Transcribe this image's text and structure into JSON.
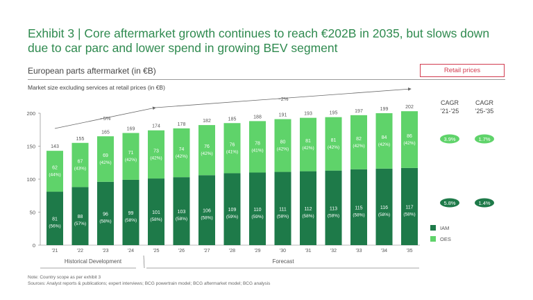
{
  "header": {
    "title": "Exhibit 3 | Core aftermarket growth continues to reach €202B in 2035, but slows down due to car parc and lower spend in growing BEV segment",
    "subtitle": "European parts aftermarket (in €B)",
    "retail_label": "Retail prices",
    "market_size_note": "Market size excluding services at retail prices (in €B)"
  },
  "chart_data": {
    "type": "bar",
    "stacked": true,
    "categories": [
      "'21",
      "'22",
      "'23",
      "'24",
      "'25",
      "'26",
      "'27",
      "'28",
      "'29",
      "'30",
      "'31",
      "'32",
      "'33",
      "'34",
      "'35"
    ],
    "totals": [
      143,
      155,
      165,
      169,
      174,
      178,
      182,
      185,
      188,
      191,
      193,
      195,
      197,
      199,
      202
    ],
    "series": [
      {
        "name": "IAM",
        "color": "#1e7a49",
        "values": [
          81,
          88,
          96,
          99,
          101,
          103,
          106,
          109,
          110,
          111,
          112,
          113,
          115,
          116,
          117
        ],
        "shares": [
          "(56%)",
          "(57%)",
          "(58%)",
          "(58%)",
          "(58%)",
          "(58%)",
          "(58%)",
          "(59%)",
          "(59%)",
          "(58%)",
          "(58%)",
          "(58%)",
          "(58%)",
          "(58%)",
          "(58%)"
        ]
      },
      {
        "name": "OES",
        "color": "#5fd36a",
        "values": [
          62,
          67,
          69,
          71,
          73,
          74,
          76,
          76,
          78,
          80,
          81,
          81,
          82,
          84,
          86
        ],
        "shares": [
          "(44%)",
          "(43%)",
          "(42%)",
          "(42%)",
          "(42%)",
          "(42%)",
          "(42%)",
          "(41%)",
          "(41%)",
          "(42%)",
          "(42%)",
          "(42%)",
          "(42%)",
          "(42%)",
          "(42%)"
        ]
      }
    ],
    "ylim": [
      0,
      200
    ],
    "yticks": [
      0,
      50,
      100,
      150,
      200
    ],
    "trend_labels": {
      "historical": "~5%",
      "forecast": "~2%"
    },
    "periods": {
      "historical": "Historical Development",
      "forecast": "Forecast"
    },
    "cagr": {
      "headers": [
        "CAGR\n'21-'25",
        "CAGR\n'25-'35"
      ],
      "oes": [
        "3.9%",
        "1.7%"
      ],
      "iam": [
        "5.8%",
        "1.4%"
      ]
    },
    "legend": [
      "IAM",
      "OES"
    ],
    "colors": {
      "iam": "#1e7a49",
      "oes": "#5fd36a",
      "accent": "#2f8a4f",
      "retail_border": "#d23a4e"
    }
  },
  "footnotes": [
    "Note: Country scope as per exhibit 3",
    "Sources: Analyst reports & publications; expert interviews; BCG powertrain model; BCG aftermarket model; BCG analysis"
  ]
}
